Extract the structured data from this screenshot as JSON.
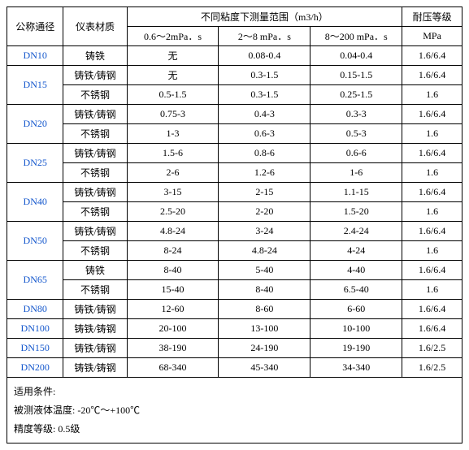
{
  "header": {
    "dn": "公称通径",
    "material": "仪表材质",
    "range_group": "不同粘度下测量范围（m3/h）",
    "v1": "0.6～2mPa．s",
    "v2": "2～8 mPa．s",
    "v3": "8～200 mPa．s",
    "pressure": "耐压等级",
    "pressure_unit": "MPa"
  },
  "rows": [
    {
      "dn": "DN10",
      "dn_rowspan": 1,
      "material": "铸铁",
      "v1": "无",
      "v2": "0.08-0.4",
      "v3": "0.04-0.4",
      "p": "1.6/6.4"
    },
    {
      "dn": "DN15",
      "dn_rowspan": 2,
      "material": "铸铁/铸钢",
      "v1": "无",
      "v2": "0.3-1.5",
      "v3": "0.15-1.5",
      "p": "1.6/6.4"
    },
    {
      "dn": "",
      "dn_rowspan": 0,
      "material": "不锈钢",
      "v1": "0.5-1.5",
      "v2": "0.3-1.5",
      "v3": "0.25-1.5",
      "p": "1.6"
    },
    {
      "dn": "DN20",
      "dn_rowspan": 2,
      "material": "铸铁/铸钢",
      "v1": "0.75-3",
      "v2": "0.4-3",
      "v3": "0.3-3",
      "p": "1.6/6.4"
    },
    {
      "dn": "",
      "dn_rowspan": 0,
      "material": "不锈钢",
      "v1": "1-3",
      "v2": "0.6-3",
      "v3": "0.5-3",
      "p": "1.6"
    },
    {
      "dn": "DN25",
      "dn_rowspan": 2,
      "material": "铸铁/铸钢",
      "v1": "1.5-6",
      "v2": "0.8-6",
      "v3": "0.6-6",
      "p": "1.6/6.4"
    },
    {
      "dn": "",
      "dn_rowspan": 0,
      "material": "不锈钢",
      "v1": "2-6",
      "v2": "1.2-6",
      "v3": "1-6",
      "p": "1.6"
    },
    {
      "dn": "DN40",
      "dn_rowspan": 2,
      "material": "铸铁/铸钢",
      "v1": "3-15",
      "v2": "2-15",
      "v3": "1.1-15",
      "p": "1.6/6.4"
    },
    {
      "dn": "",
      "dn_rowspan": 0,
      "material": "不锈钢",
      "v1": "2.5-20",
      "v2": "2-20",
      "v3": "1.5-20",
      "p": "1.6"
    },
    {
      "dn": "DN50",
      "dn_rowspan": 2,
      "material": "铸铁/铸钢",
      "v1": "4.8-24",
      "v2": "3-24",
      "v3": "2.4-24",
      "p": "1.6/6.4"
    },
    {
      "dn": "",
      "dn_rowspan": 0,
      "material": "不锈钢",
      "v1": "8-24",
      "v2": "4.8-24",
      "v3": "4-24",
      "p": "1.6"
    },
    {
      "dn": "DN65",
      "dn_rowspan": 2,
      "material": "铸铁",
      "v1": "8-40",
      "v2": "5-40",
      "v3": "4-40",
      "p": "1.6/6.4"
    },
    {
      "dn": "",
      "dn_rowspan": 0,
      "material": "不锈钢",
      "v1": "15-40",
      "v2": "8-40",
      "v3": "6.5-40",
      "p": "1.6"
    },
    {
      "dn": "DN80",
      "dn_rowspan": 1,
      "material": "铸铁/铸钢",
      "v1": "12-60",
      "v2": "8-60",
      "v3": "6-60",
      "p": "1.6/6.4"
    },
    {
      "dn": "DN100",
      "dn_rowspan": 1,
      "material": "铸铁/铸钢",
      "v1": "20-100",
      "v2": "13-100",
      "v3": "10-100",
      "p": "1.6/6.4"
    },
    {
      "dn": "DN150",
      "dn_rowspan": 1,
      "material": "铸铁/铸钢",
      "v1": "38-190",
      "v2": "24-190",
      "v3": "19-190",
      "p": "1.6/2.5"
    },
    {
      "dn": "DN200",
      "dn_rowspan": 1,
      "material": "铸铁/铸钢",
      "v1": "68-340",
      "v2": "45-340",
      "v3": "34-340",
      "p": "1.6/2.5"
    }
  ],
  "notes": {
    "line1": "适用条件:",
    "line2": "被测液体温度: -20℃～+100℃",
    "line3": "精度等级: 0.5级"
  },
  "style": {
    "font_family": "SimSun",
    "font_size_pt": 9,
    "border_color": "#000000",
    "dn_text_color": "#1155cc",
    "background_color": "#ffffff"
  }
}
